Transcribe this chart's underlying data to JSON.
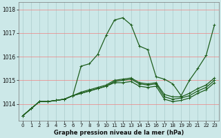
{
  "title": "Graphe pression niveau de la mer (hPa)",
  "bg_color": "#cce8e8",
  "plot_bg_color": "#cce8e8",
  "hgrid_color": "#f08080",
  "vgrid_color": "#aacccc",
  "line_color": "#1e5e1e",
  "xlim": [
    -0.5,
    23.5
  ],
  "ylim": [
    1013.3,
    1018.3
  ],
  "yticks": [
    1014,
    1015,
    1016,
    1017,
    1018
  ],
  "xticks": [
    0,
    1,
    2,
    3,
    4,
    5,
    6,
    7,
    8,
    9,
    10,
    11,
    12,
    13,
    14,
    15,
    16,
    17,
    18,
    19,
    20,
    21,
    22,
    23
  ],
  "series": [
    [
      1013.5,
      1013.8,
      1014.1,
      1014.1,
      1014.15,
      1014.2,
      1014.35,
      1015.6,
      1015.7,
      1016.1,
      1016.9,
      1017.55,
      1017.65,
      1017.35,
      1016.45,
      1016.3,
      1015.15,
      1015.05,
      1014.85,
      1014.35,
      1015.0,
      1015.5,
      1016.05,
      1017.35
    ],
    [
      1013.5,
      1013.8,
      1014.1,
      1014.1,
      1014.15,
      1014.2,
      1014.35,
      1014.45,
      1014.55,
      1014.65,
      1014.75,
      1014.95,
      1015.0,
      1015.05,
      1014.85,
      1014.8,
      1014.85,
      1014.3,
      1014.2,
      1014.25,
      1014.35,
      1014.55,
      1014.7,
      1015.0
    ],
    [
      1013.5,
      1013.8,
      1014.1,
      1014.1,
      1014.15,
      1014.2,
      1014.35,
      1014.5,
      1014.6,
      1014.7,
      1014.8,
      1015.0,
      1015.05,
      1015.1,
      1014.9,
      1014.85,
      1014.9,
      1014.4,
      1014.3,
      1014.3,
      1014.45,
      1014.65,
      1014.8,
      1015.1
    ],
    [
      1013.5,
      1013.8,
      1014.1,
      1014.1,
      1014.15,
      1014.2,
      1014.35,
      1014.45,
      1014.55,
      1014.65,
      1014.75,
      1014.9,
      1014.9,
      1014.95,
      1014.75,
      1014.7,
      1014.75,
      1014.2,
      1014.1,
      1014.15,
      1014.25,
      1014.45,
      1014.6,
      1014.9
    ]
  ],
  "xlabel_fontsize": 6.0,
  "xlabel_fontweight": "bold",
  "tick_fontsize": 5.5,
  "xtick_fontsize": 5.0,
  "marker_size": 3,
  "linewidth": 0.9
}
